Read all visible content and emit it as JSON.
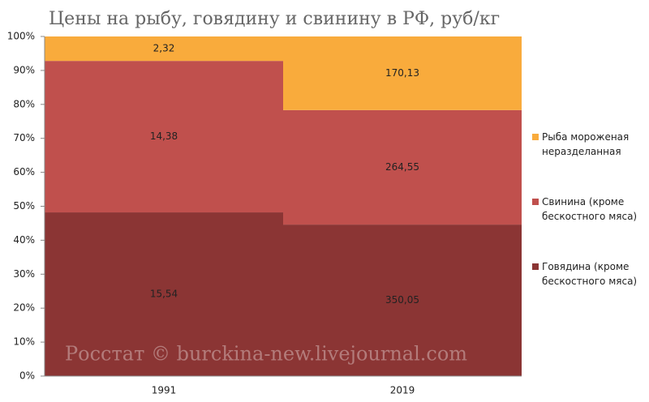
{
  "chart_data": {
    "type": "bar",
    "stacking": "percent",
    "title": "Цены на рыбу, говядину и свинину в РФ, руб/кг",
    "watermark": "Росстат © burckina-new.livejournal.com",
    "categories": [
      "1991",
      "2019"
    ],
    "series": [
      {
        "name": "Говядина (кроме бескостного мяса)",
        "color": "#8b3534",
        "values": [
          15.54,
          350.05
        ],
        "value_labels": [
          "15,54",
          "350,05"
        ]
      },
      {
        "name": "Свинина (кроме бескостного мяса)",
        "color": "#c0504d",
        "values": [
          14.38,
          264.55
        ],
        "value_labels": [
          "14,38",
          "264,55"
        ]
      },
      {
        "name": "Рыба мороженая неразделанная",
        "color": "#f9ab3c",
        "values": [
          2.32,
          170.13
        ],
        "value_labels": [
          "2,32",
          "170,13"
        ]
      }
    ],
    "ylim": [
      0,
      100
    ],
    "yticks": [
      {
        "value": 0,
        "label": "0%"
      },
      {
        "value": 10,
        "label": "10%"
      },
      {
        "value": 20,
        "label": "20%"
      },
      {
        "value": 30,
        "label": "30%"
      },
      {
        "value": 40,
        "label": "40%"
      },
      {
        "value": 50,
        "label": "50%"
      },
      {
        "value": 60,
        "label": "60%"
      },
      {
        "value": 70,
        "label": "70%"
      },
      {
        "value": 80,
        "label": "80%"
      },
      {
        "value": 90,
        "label": "90%"
      },
      {
        "value": 100,
        "label": "100%"
      }
    ],
    "legend": "right"
  }
}
